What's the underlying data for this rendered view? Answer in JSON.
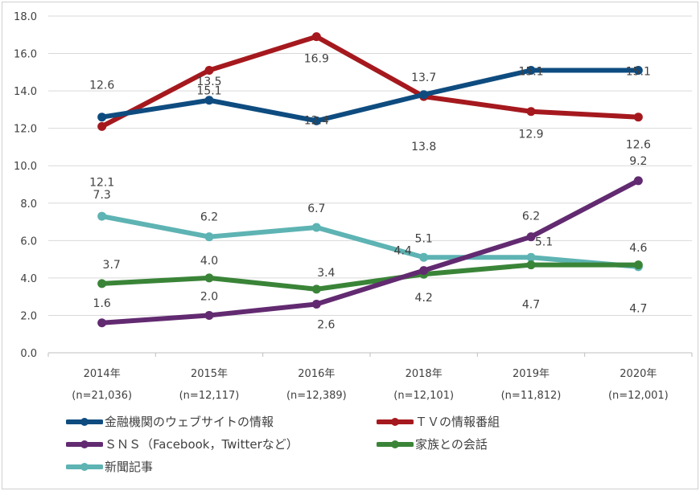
{
  "chart_data": {
    "type": "line",
    "categories": [
      "2014年",
      "2015年",
      "2016年",
      "2018年",
      "2019年",
      "2020年"
    ],
    "category_sublabels": [
      "(n=21,036)",
      "(n=12,117)",
      "(n=12,389)",
      "(n=12,101)",
      "(n=11,812)",
      "(n=12,001)"
    ],
    "ylim": [
      0,
      18
    ],
    "yticks": [
      "0.0",
      "2.0",
      "4.0",
      "6.0",
      "8.0",
      "10.0",
      "12.0",
      "14.0",
      "16.0",
      "18.0"
    ],
    "grid": true,
    "legend_position": "bottom",
    "series": [
      {
        "name": "金融機関のウェブサイトの情報",
        "color": "#0E4C80",
        "values": [
          12.6,
          13.5,
          12.4,
          13.8,
          15.1,
          15.1
        ],
        "labels": [
          "12.6",
          "13.5",
          "12.4",
          "13.8",
          "15.1",
          "15.1"
        ]
      },
      {
        "name": "ＴＶの情報番組",
        "color": "#A5191E",
        "values": [
          12.1,
          15.1,
          16.9,
          13.7,
          12.9,
          12.6
        ],
        "labels": [
          "12.1",
          "15.1",
          "16.9",
          "13.7",
          "12.9",
          "12.6"
        ]
      },
      {
        "name": "ＳＮＳ（Facebook，Twitterなど）",
        "color": "#622A70",
        "values": [
          1.6,
          2.0,
          2.6,
          4.4,
          6.2,
          9.2
        ],
        "labels": [
          "1.6",
          "2.0",
          "2.6",
          "4.4",
          "6.2",
          "9.2"
        ]
      },
      {
        "name": "家族との会話",
        "color": "#3A8438",
        "values": [
          3.7,
          4.0,
          3.4,
          4.2,
          4.7,
          4.7
        ],
        "labels": [
          "3.7",
          "4.0",
          "3.4",
          "4.2",
          "4.7",
          "4.7"
        ]
      },
      {
        "name": "新聞記事",
        "color": "#5EB3B3",
        "values": [
          7.3,
          6.2,
          6.7,
          5.1,
          5.1,
          4.6
        ],
        "labels": [
          "7.3",
          "6.2",
          "6.7",
          "5.1",
          "5.1",
          "4.6"
        ]
      }
    ]
  }
}
